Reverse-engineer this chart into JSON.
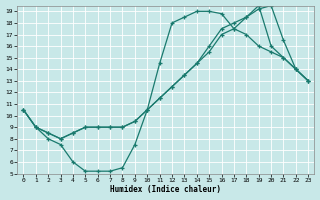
{
  "xlabel": "Humidex (Indice chaleur)",
  "background_color": "#c8e8e8",
  "grid_color": "#ffffff",
  "line_color": "#1a7a6e",
  "xlim": [
    -0.5,
    23.5
  ],
  "ylim": [
    5,
    19.5
  ],
  "xticks": [
    0,
    1,
    2,
    3,
    4,
    5,
    6,
    7,
    8,
    9,
    10,
    11,
    12,
    13,
    14,
    15,
    16,
    17,
    18,
    19,
    20,
    21,
    22,
    23
  ],
  "yticks": [
    5,
    6,
    7,
    8,
    9,
    10,
    11,
    12,
    13,
    14,
    15,
    16,
    17,
    18,
    19
  ],
  "line1_x": [
    0,
    1,
    2,
    3,
    4,
    5,
    6,
    7,
    8,
    9,
    10,
    11,
    12,
    13,
    14,
    15,
    16,
    17,
    18,
    19,
    20,
    21,
    22,
    23
  ],
  "line1_y": [
    10.5,
    9,
    8,
    7.5,
    6,
    5.2,
    5.2,
    5.2,
    5.5,
    7.5,
    10.5,
    14.5,
    18,
    18.5,
    19,
    19,
    18.8,
    17.5,
    17,
    16,
    15.5,
    15,
    14,
    13
  ],
  "line2_x": [
    0,
    1,
    2,
    3,
    4,
    5,
    6,
    7,
    8,
    9,
    10,
    11,
    12,
    13,
    14,
    15,
    16,
    17,
    18,
    19,
    20,
    21,
    22,
    23
  ],
  "line2_y": [
    10.5,
    9,
    8.5,
    8,
    8.5,
    9,
    9,
    9,
    9,
    9.5,
    10.5,
    11.5,
    12.5,
    13.5,
    14.5,
    15.5,
    17,
    17.5,
    18.5,
    19.5,
    16,
    15,
    14,
    13
  ],
  "line3_x": [
    0,
    1,
    2,
    3,
    4,
    5,
    6,
    7,
    8,
    9,
    10,
    11,
    12,
    13,
    14,
    15,
    16,
    17,
    18,
    19,
    20,
    21,
    22,
    23
  ],
  "line3_y": [
    10.5,
    9,
    8.5,
    8,
    8.5,
    9,
    9,
    9,
    9,
    9.5,
    10.5,
    11.5,
    12.5,
    13.5,
    14.5,
    16,
    17.5,
    18,
    18.5,
    19.2,
    19.5,
    16.5,
    14,
    13
  ]
}
